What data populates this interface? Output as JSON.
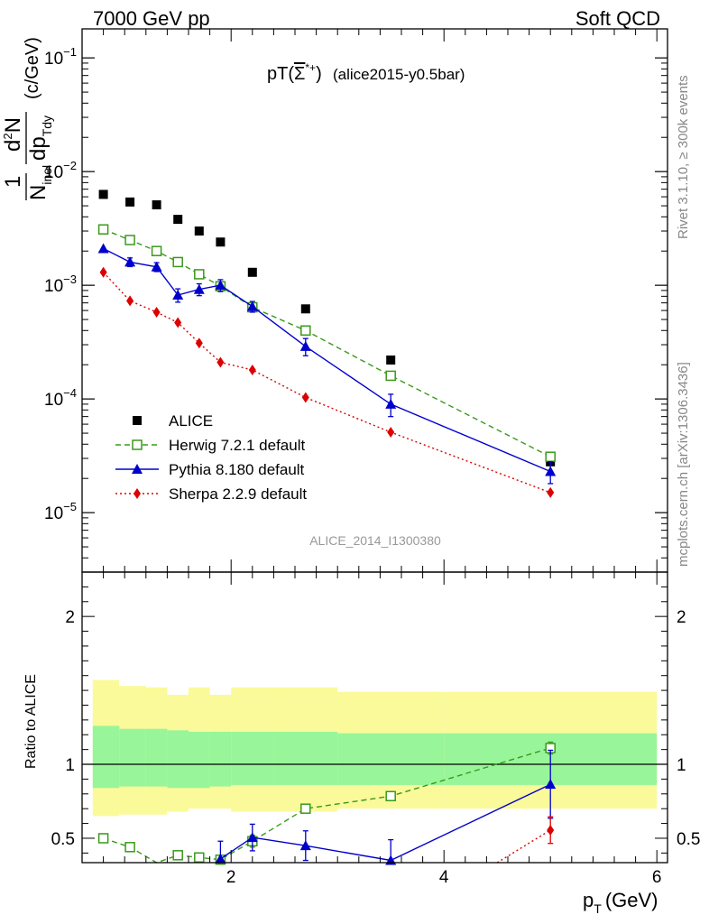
{
  "header": {
    "left": "7000 GeV pp",
    "right": "Soft QCD"
  },
  "side_text": {
    "rivet": "Rivet 3.1.10, ≥ 300k events",
    "mcplots": "mcplots.cern.ch [arXiv:1306.3436]"
  },
  "plot_title": {
    "main": "pT(",
    "sym": "Σ",
    "sup": "*+",
    "close": ")",
    "tag": "(alice2015-y0.5bar)"
  },
  "watermark": "ALICE_2014_I1300380",
  "ylabel_top": {
    "one": "1",
    "n": "N",
    "n_sub": "inel",
    "num": "d",
    "num_sup": "2",
    "num_n": "N",
    "den": "dp",
    "den_sub": "Tdy",
    "unit": "(c/GeV)"
  },
  "ylabel_bottom": "Ratio to ALICE",
  "xlabel": {
    "p": "p",
    "sub": "T",
    "unit": "(GeV)"
  },
  "colors": {
    "alice": "#000000",
    "herwig": "#3a9a1a",
    "pythia": "#0000cc",
    "sherpa": "#dd0000",
    "band_inner": "#99f599",
    "band_outer": "#fafa9a"
  },
  "chart_data": [
    {
      "type": "scatter",
      "title": "pT(Σ*+) (alice2015-y0.5bar)",
      "ylabel": "1/N_inel d²N/dp_T dy (c/GeV)",
      "log_y": true,
      "xlim": [
        0.6,
        6.1
      ],
      "ylim": [
        3e-06,
        0.18
      ],
      "y_ticks": [
        {
          "v": 1e-05,
          "base": "10",
          "exp": "−5"
        },
        {
          "v": 0.0001,
          "base": "10",
          "exp": "−4"
        },
        {
          "v": 0.001,
          "base": "10",
          "exp": "−3"
        },
        {
          "v": 0.01,
          "base": "10",
          "exp": "−2"
        },
        {
          "v": 0.1,
          "base": "10",
          "exp": "−1"
        }
      ],
      "legend": {
        "position": "left-middle",
        "entries": [
          "ALICE",
          "Herwig 7.2.1 default",
          "Pythia 8.180 default",
          "Sherpa 2.2.9 default"
        ]
      },
      "x": [
        0.8,
        1.05,
        1.3,
        1.5,
        1.7,
        1.9,
        2.2,
        2.7,
        3.5,
        5.0
      ],
      "series": [
        {
          "name": "ALICE",
          "style": "square",
          "values": [
            0.0063,
            0.0054,
            0.0051,
            0.0038,
            0.003,
            0.0024,
            0.0013,
            0.00062,
            0.00022,
            2.8e-05
          ]
        },
        {
          "name": "Herwig 7.2.1 default",
          "style": "open-square",
          "line": "dashed",
          "values": [
            0.0031,
            0.0025,
            0.002,
            0.0016,
            0.00125,
            0.00098,
            0.00064,
            0.0004,
            0.00016,
            3.1e-05
          ]
        },
        {
          "name": "Pythia 8.180 default",
          "style": "triangle",
          "line": "solid",
          "values": [
            0.0021,
            0.0016,
            0.00145,
            0.00082,
            0.00092,
            0.001,
            0.00065,
            0.00029,
            9e-05,
            2.3e-05
          ],
          "err_lo": [
            0,
            0.00014,
            0.00013,
            0.00011,
            0.00011,
            0.00012,
            7e-05,
            5e-05,
            2e-05,
            5e-06
          ],
          "err_hi": [
            0,
            0.00014,
            0.00013,
            0.00011,
            0.00011,
            0.00012,
            7e-05,
            5e-05,
            2e-05,
            5e-06
          ]
        },
        {
          "name": "Sherpa 2.2.9 default",
          "style": "diamond",
          "line": "dotted",
          "values": [
            0.0013,
            0.00073,
            0.00058,
            0.00047,
            0.00031,
            0.00021,
            0.00018,
            0.000103,
            5.1e-05,
            1.5e-05
          ]
        }
      ]
    },
    {
      "type": "scatter",
      "ylabel": "Ratio to ALICE",
      "xlabel": "p_T (GeV)",
      "xlim": [
        0.6,
        6.1
      ],
      "ylim": [
        0.335,
        2.3
      ],
      "x_ticks": [
        2,
        4,
        6
      ],
      "y_ticks": [
        0.5,
        1,
        2
      ],
      "reference_line": 1,
      "bands": {
        "edges": [
          0.7,
          0.95,
          1.2,
          1.4,
          1.6,
          1.8,
          2.0,
          2.4,
          3.0,
          4.0,
          6.0
        ],
        "inner_lo": [
          0.84,
          0.85,
          0.85,
          0.84,
          0.84,
          0.85,
          0.86,
          0.86,
          0.86,
          0.86
        ],
        "inner_hi": [
          1.26,
          1.24,
          1.24,
          1.23,
          1.22,
          1.22,
          1.22,
          1.22,
          1.21,
          1.21
        ],
        "outer_lo": [
          0.65,
          0.66,
          0.66,
          0.68,
          0.7,
          0.7,
          0.68,
          0.68,
          0.7,
          0.7
        ],
        "outer_hi": [
          1.57,
          1.53,
          1.52,
          1.47,
          1.52,
          1.47,
          1.52,
          1.52,
          1.49,
          1.49
        ]
      },
      "x": [
        0.8,
        1.05,
        1.3,
        1.5,
        1.7,
        1.9,
        2.2,
        2.7,
        3.5,
        5.0
      ],
      "series": [
        {
          "name": "Herwig 7.2.1 default",
          "x": [
            0.8,
            1.05,
            1.3,
            1.5,
            1.7,
            1.9,
            2.2,
            2.7,
            3.5,
            5.0
          ],
          "values": [
            0.5,
            0.44,
            0.32,
            0.385,
            0.37,
            0.355,
            0.48,
            0.7,
            0.785,
            1.11
          ],
          "err": [
            0,
            0,
            0,
            0.015,
            0.015,
            0.015,
            0.04,
            0.02,
            0.025,
            0.04
          ]
        },
        {
          "name": "Pythia 8.180 default",
          "x": [
            1.9,
            2.2,
            2.7,
            3.5,
            5.0
          ],
          "values": [
            0.36,
            0.505,
            0.45,
            0.35,
            0.865
          ],
          "err": [
            0.12,
            0.09,
            0.1,
            0.14,
            0.23
          ]
        },
        {
          "name": "Sherpa 2.2.9 default",
          "x": [
            4.5,
            5.0
          ],
          "values": [
            0.33,
            0.555
          ],
          "err": [
            0,
            0.09
          ]
        }
      ]
    }
  ]
}
